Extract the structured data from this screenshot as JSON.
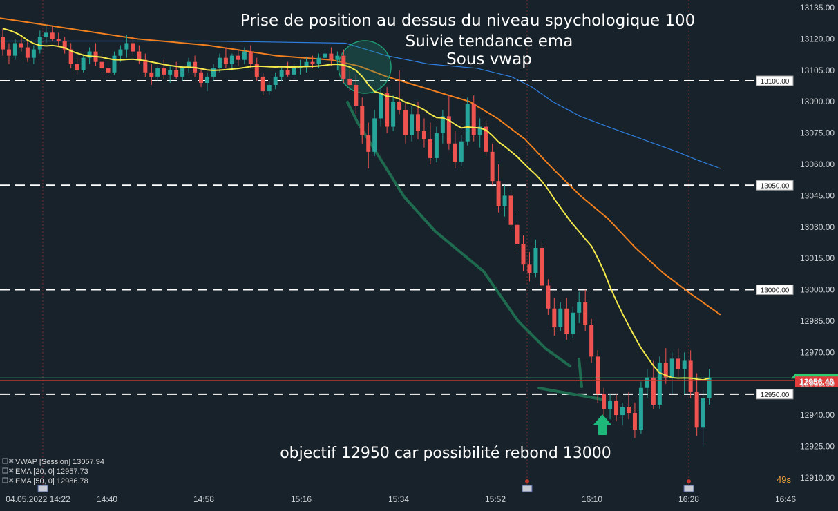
{
  "chart_data": {
    "type": "candlestick",
    "title_lines": [
      "Prise de position au dessus du niveau spychologique 100",
      "Suivie tendance ema",
      "Sous vwap"
    ],
    "bottom_annotation": "objectif 12950 car possibilité rebond 13000",
    "ylim": [
      12905,
      13137
    ],
    "y_ticks": [
      "13135.00",
      "13120.00",
      "13105.00",
      "13090.00",
      "13075.00",
      "13060.00",
      "13045.00",
      "13030.00",
      "13015.00",
      "13000.00",
      "12985.00",
      "12970.00",
      "12955.00",
      "12940.00",
      "12925.00",
      "12910.00"
    ],
    "x_ticks": [
      "04.05.2022 14:22",
      "14:40",
      "14:58",
      "15:16",
      "15:34",
      "15:52",
      "16:10",
      "16:28",
      "16:46"
    ],
    "levels": [
      "13100.00",
      "13050.00",
      "13000.00",
      "12950.00"
    ],
    "current_price": "12956.48",
    "timer": "49s",
    "legend": [
      {
        "label": "VWAP [Session] 13057.94",
        "color": "#2f7fe0"
      },
      {
        "label": "EMA [20, 0] 12957.73",
        "color": "#f4e94a"
      },
      {
        "label": "EMA [50, 0] 12986.78",
        "color": "#f2801f"
      }
    ],
    "colors": {
      "up": "#26a69a",
      "down": "#ef5350",
      "vwap": "#2f7fe0",
      "ema20": "#f4e94a",
      "ema50": "#f2801f",
      "drawing": "#1e6b4f",
      "price_line": "#2ecc71",
      "session_marker": "#c0392b"
    },
    "candles": [
      [
        13121,
        13125,
        13112,
        13115
      ],
      [
        13115,
        13118,
        13108,
        13112
      ],
      [
        13112,
        13120,
        13110,
        13118
      ],
      [
        13118,
        13122,
        13114,
        13116
      ],
      [
        13116,
        13119,
        13109,
        13111
      ],
      [
        13111,
        13117,
        13108,
        13115
      ],
      [
        13115,
        13124,
        13113,
        13121
      ],
      [
        13121,
        13127,
        13118,
        13123
      ],
      [
        13123,
        13126,
        13119,
        13120
      ],
      [
        13120,
        13123,
        13116,
        13119
      ],
      [
        13119,
        13121,
        13113,
        13115
      ],
      [
        13115,
        13118,
        13106,
        13108
      ],
      [
        13108,
        13111,
        13103,
        13105
      ],
      [
        13105,
        13112,
        13104,
        13111
      ],
      [
        13111,
        13116,
        13108,
        13114
      ],
      [
        13114,
        13118,
        13107,
        13109
      ],
      [
        13109,
        13113,
        13104,
        13106
      ],
      [
        13106,
        13110,
        13102,
        13104
      ],
      [
        13104,
        13114,
        13103,
        13112
      ],
      [
        13112,
        13117,
        13109,
        13115
      ],
      [
        13115,
        13122,
        13111,
        13118
      ],
      [
        13118,
        13121,
        13112,
        13114
      ],
      [
        13114,
        13117,
        13108,
        13110
      ],
      [
        13110,
        13113,
        13102,
        13104
      ],
      [
        13104,
        13108,
        13098,
        13102
      ],
      [
        13102,
        13107,
        13100,
        13106
      ],
      [
        13106,
        13110,
        13101,
        13103
      ],
      [
        13103,
        13107,
        13099,
        13105
      ],
      [
        13105,
        13109,
        13101,
        13102
      ],
      [
        13102,
        13107,
        13100,
        13106
      ],
      [
        13106,
        13111,
        13104,
        13109
      ],
      [
        13109,
        13112,
        13102,
        13104
      ],
      [
        13104,
        13106,
        13097,
        13099
      ],
      [
        13099,
        13104,
        13095,
        13102
      ],
      [
        13102,
        13108,
        13100,
        13106
      ],
      [
        13106,
        13113,
        13104,
        13111
      ],
      [
        13111,
        13116,
        13106,
        13108
      ],
      [
        13108,
        13113,
        13105,
        13112
      ],
      [
        13112,
        13115,
        13107,
        13110
      ],
      [
        13110,
        13116,
        13108,
        13114
      ],
      [
        13114,
        13117,
        13106,
        13108
      ],
      [
        13108,
        13111,
        13100,
        13102
      ],
      [
        13102,
        13104,
        13093,
        13095
      ],
      [
        13095,
        13100,
        13093,
        13098
      ],
      [
        13098,
        13104,
        13096,
        13102
      ],
      [
        13102,
        13107,
        13100,
        13105
      ],
      [
        13105,
        13109,
        13102,
        13103
      ],
      [
        13103,
        13108,
        13101,
        13106
      ],
      [
        13106,
        13110,
        13103,
        13107
      ],
      [
        13107,
        13111,
        13104,
        13109
      ],
      [
        13109,
        13112,
        13106,
        13108
      ],
      [
        13108,
        13113,
        13106,
        13111
      ],
      [
        13111,
        13115,
        13109,
        13113
      ],
      [
        13113,
        13116,
        13107,
        13110
      ],
      [
        13110,
        13114,
        13105,
        13112
      ],
      [
        13112,
        13115,
        13099,
        13101
      ],
      [
        13101,
        13105,
        13095,
        13098
      ],
      [
        13098,
        13103,
        13084,
        13088
      ],
      [
        13088,
        13092,
        13070,
        13074
      ],
      [
        13074,
        13080,
        13058,
        13066
      ],
      [
        13066,
        13086,
        13064,
        13082
      ],
      [
        13082,
        13098,
        13078,
        13094
      ],
      [
        13094,
        13097,
        13075,
        13078
      ],
      [
        13078,
        13093,
        13076,
        13090
      ],
      [
        13090,
        13105,
        13084,
        13086
      ],
      [
        13086,
        13090,
        13070,
        13074
      ],
      [
        13074,
        13088,
        13071,
        13084
      ],
      [
        13084,
        13090,
        13072,
        13076
      ],
      [
        13076,
        13082,
        13068,
        13072
      ],
      [
        13072,
        13080,
        13060,
        13063
      ],
      [
        13063,
        13078,
        13061,
        13075
      ],
      [
        13075,
        13086,
        13070,
        13083
      ],
      [
        13083,
        13093,
        13067,
        13070
      ],
      [
        13070,
        13076,
        13058,
        13061
      ],
      [
        13061,
        13074,
        13059,
        13071
      ],
      [
        13071,
        13092,
        13069,
        13089
      ],
      [
        13089,
        13093,
        13071,
        13074
      ],
      [
        13074,
        13082,
        13068,
        13078
      ],
      [
        13078,
        13081,
        13064,
        13066
      ],
      [
        13066,
        13070,
        13050,
        13052
      ],
      [
        13052,
        13060,
        13037,
        13040
      ],
      [
        13040,
        13050,
        13035,
        13045
      ],
      [
        13045,
        13048,
        13028,
        13031
      ],
      [
        13031,
        13036,
        13018,
        13022
      ],
      [
        13022,
        13026,
        13009,
        13012
      ],
      [
        13012,
        13018,
        13004,
        13008
      ],
      [
        13008,
        13024,
        13006,
        13020
      ],
      [
        13020,
        13023,
        13000,
        13002
      ],
      [
        13002,
        13005,
        12988,
        12991
      ],
      [
        12991,
        12996,
        12978,
        12982
      ],
      [
        12982,
        12994,
        12980,
        12991
      ],
      [
        12991,
        12996,
        12976,
        12979
      ],
      [
        12979,
        12992,
        12977,
        12989
      ],
      [
        12989,
        12999,
        12984,
        12994
      ],
      [
        12994,
        13000,
        12980,
        12983
      ],
      [
        12983,
        12986,
        12965,
        12968
      ],
      [
        12968,
        12971,
        12946,
        12950
      ],
      [
        12950,
        12953,
        12940,
        12943
      ],
      [
        12943,
        12950,
        12938,
        12947
      ],
      [
        12947,
        12950,
        12937,
        12940
      ],
      [
        12940,
        12946,
        12935,
        12944
      ],
      [
        12944,
        12951,
        12938,
        12941
      ],
      [
        12941,
        12946,
        12929,
        12933
      ],
      [
        12933,
        12956,
        12931,
        12953
      ],
      [
        12953,
        12962,
        12948,
        12958
      ],
      [
        12958,
        12966,
        12943,
        12945
      ],
      [
        12945,
        12968,
        12943,
        12965
      ],
      [
        12965,
        12972,
        12955,
        12958
      ],
      [
        12958,
        12970,
        12950,
        12967
      ],
      [
        12967,
        12972,
        12958,
        12962
      ],
      [
        12962,
        12970,
        12950,
        12966
      ],
      [
        12966,
        12971,
        12948,
        12951
      ],
      [
        12951,
        12960,
        12930,
        12934
      ],
      [
        12934,
        12952,
        12925,
        12948
      ],
      [
        12948,
        12962,
        12945,
        12958
      ]
    ],
    "ema20": [
      13125,
      13124.2,
      13123.1,
      13121.5,
      13119.4,
      13117.8,
      13116.9,
      13116.7,
      13116.9,
      13116.5,
      13115.8,
      13114.3,
      13113.2,
      13112.3,
      13111.8,
      13111.6,
      13111.3,
      13110.6,
      13110.1,
      13110.0,
      13110.2,
      13110.3,
      13110.0,
      13109.6,
      13109.0,
      13108.4,
      13107.8,
      13107.3,
      13106.9,
      13106.5,
      13106.5,
      13106.3,
      13105.8,
      13105.2,
      13105.0,
      13105.1,
      13105.3,
      13105.6,
      13105.9,
      13106.3,
      13106.8,
      13107.0,
      13106.9,
      13106.7,
      13106.6,
      13106.7,
      13106.6,
      13106.6,
      13106.7,
      13106.8,
      13106.9,
      13107.1,
      13107.4,
      13107.8,
      13107.9,
      13107.5,
      13106.6,
      13105.0,
      13102.1,
      13098.1,
      13094.8,
      13094.0,
      13092.6,
      13092.3,
      13091.3,
      13089.7,
      13088.8,
      13087.6,
      13086.1,
      13084.0,
      13082.4,
      13082.2,
      13081.1,
      13079.1,
      13077.4,
      13077.9,
      13077.6,
      13077.4,
      13076.4,
      13073.8,
      13070.7,
      13068.6,
      13066.2,
      13063.7,
      13060.7,
      13057.8,
      13055.1,
      13051.9,
      13048.0,
      13043.4,
      13039.3,
      13035.2,
      13031.3,
      13027.9,
      13024.3,
      13020.9,
      13015.2,
      13008.9,
      13001.4,
      12994.7,
      12988.6,
      12982.8,
      12977.4,
      12972.1,
      12967.8,
      12963.6,
      12960.2,
      12959.0,
      12957.9,
      12957.7,
      12957.8,
      12957.7,
      12957.2,
      12956.8,
      12957.7
    ]
  }
}
